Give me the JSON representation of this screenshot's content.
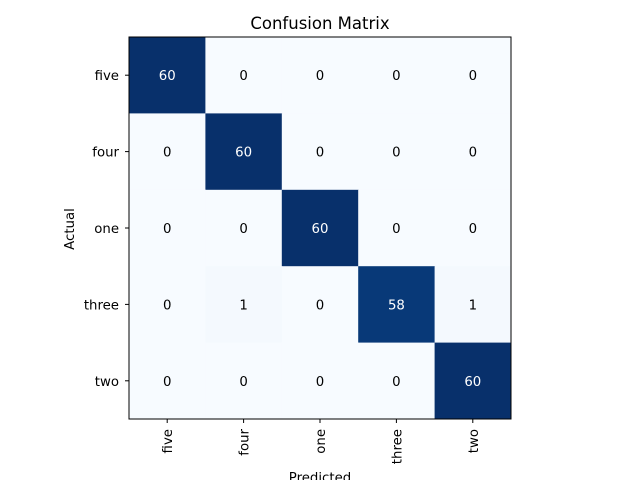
{
  "chart_data": {
    "type": "heatmap",
    "title": "Confusion Matrix",
    "xlabel": "Predicted",
    "ylabel": "Actual",
    "x_categories": [
      "five",
      "four",
      "one",
      "three",
      "two"
    ],
    "y_categories": [
      "five",
      "four",
      "one",
      "three",
      "two"
    ],
    "values": [
      [
        60,
        0,
        0,
        0,
        0
      ],
      [
        0,
        60,
        0,
        0,
        0
      ],
      [
        0,
        0,
        60,
        0,
        0
      ],
      [
        0,
        1,
        0,
        58,
        1
      ],
      [
        0,
        0,
        0,
        0,
        60
      ]
    ],
    "value_range": [
      0,
      60
    ],
    "colormap": {
      "name": "Blues",
      "low_color": "#f7fbff",
      "high_color": "#08306b"
    },
    "x_tick_rotation": "vertical",
    "grid": false,
    "legend": "none"
  }
}
